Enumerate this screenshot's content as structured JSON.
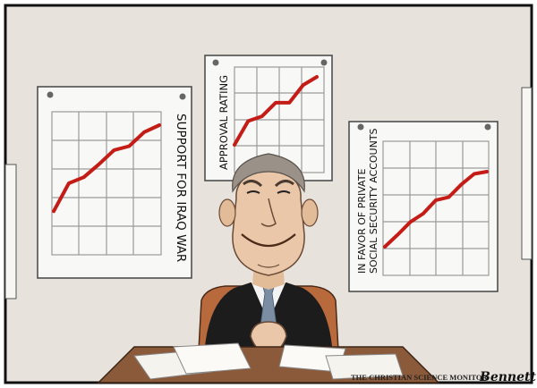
{
  "charts": [
    {
      "label": "SUPPORT FOR IRAQ WAR",
      "chart_data": {
        "type": "line",
        "title": "SUPPORT FOR IRAQ WAR",
        "y": [
          0.14,
          0.42,
          0.48,
          0.61,
          0.75,
          0.79,
          0.93,
          1.0
        ],
        "grid": true
      }
    },
    {
      "label": "APPROVAL RATING",
      "chart_data": {
        "type": "line",
        "title": "APPROVAL RATING",
        "y": [
          0.0,
          0.35,
          0.42,
          0.62,
          0.62,
          0.88,
          1.0
        ],
        "grid": true
      }
    },
    {
      "label_line1": "IN FAVOR OF PRIVATE",
      "label_line2": "SOCIAL SECURITY ACCOUNTS",
      "chart_data": {
        "type": "line",
        "title": "IN FAVOR OF PRIVATE SOCIAL SECURITY ACCOUNTS",
        "y": [
          0.0,
          0.16,
          0.33,
          0.44,
          0.62,
          0.66,
          0.83,
          0.97,
          1.0
        ],
        "grid": true
      }
    }
  ],
  "credit": {
    "publication": "THE CHRISTIAN SCIENCE MONITOR",
    "signature": "Bennett"
  },
  "colors": {
    "wall": "#e7e3dc",
    "desk": "#8a5a3a",
    "chair": "#b86a3c",
    "trend_line": "#c41c16",
    "suit": "#1c1c1c",
    "tie": "#7a8da3",
    "skin": "#e9c7a8"
  }
}
